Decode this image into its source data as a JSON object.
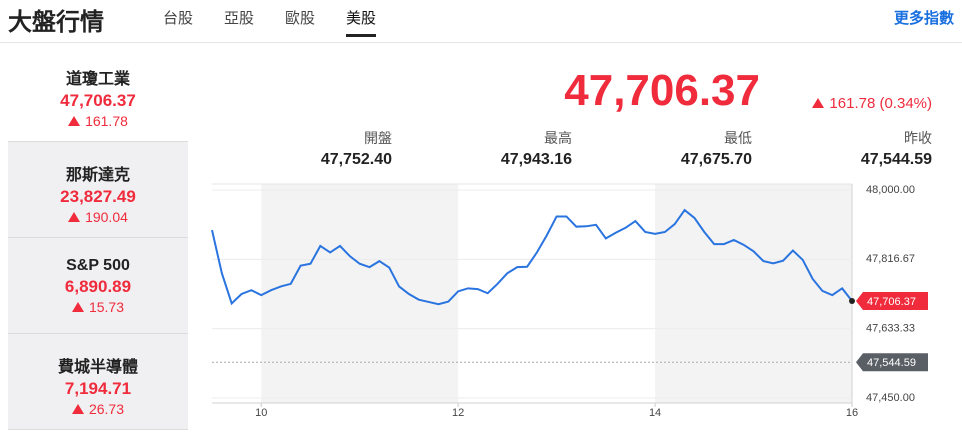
{
  "header": {
    "title": "大盤行情",
    "tabs": [
      "台股",
      "亞股",
      "歐股",
      "美股"
    ],
    "active_tab": 3,
    "more": "更多指數"
  },
  "indices": [
    {
      "name": "道瓊工業",
      "value": "47,706.37",
      "change": "161.78"
    },
    {
      "name": "那斯達克",
      "value": "23,827.49",
      "change": "190.04"
    },
    {
      "name": "S&P 500",
      "value": "6,890.89",
      "change": "15.73"
    },
    {
      "name": "費城半導體",
      "value": "7,194.71",
      "change": "26.73"
    }
  ],
  "selected_index": 0,
  "quote": {
    "price": "47,706.37",
    "change": "161.78 (0.34%)",
    "stats": [
      {
        "label": "開盤",
        "value": "47,752.40"
      },
      {
        "label": "最高",
        "value": "47,943.16"
      },
      {
        "label": "最低",
        "value": "47,675.70"
      },
      {
        "label": "昨收",
        "value": "47,544.59"
      }
    ]
  },
  "chart_data": {
    "type": "line",
    "color": "#2a74e0",
    "x": [
      9.5,
      9.6,
      9.7,
      9.8,
      9.9,
      10.0,
      10.1,
      10.2,
      10.3,
      10.4,
      10.5,
      10.6,
      10.7,
      10.8,
      10.9,
      11.0,
      11.1,
      11.2,
      11.3,
      11.4,
      11.5,
      11.6,
      11.7,
      11.8,
      11.9,
      12.0,
      12.1,
      12.2,
      12.3,
      12.4,
      12.5,
      12.6,
      12.7,
      12.8,
      12.9,
      13.0,
      13.1,
      13.2,
      13.3,
      13.4,
      13.5,
      13.6,
      13.7,
      13.8,
      13.9,
      14.0,
      14.1,
      14.2,
      14.3,
      14.4,
      14.5,
      14.6,
      14.7,
      14.8,
      14.9,
      15.0,
      15.1,
      15.2,
      15.3,
      15.4,
      15.5,
      15.6,
      15.7,
      15.8,
      15.9,
      16.0
    ],
    "values": [
      47894,
      47780,
      47700,
      47725,
      47735,
      47722,
      47735,
      47745,
      47752,
      47800,
      47805,
      47852,
      47835,
      47852,
      47825,
      47805,
      47796,
      47812,
      47795,
      47745,
      47725,
      47710,
      47704,
      47698,
      47705,
      47732,
      47740,
      47738,
      47727,
      47752,
      47780,
      47796,
      47797,
      47835,
      47880,
      47930,
      47930,
      47903,
      47904,
      47908,
      47872,
      47887,
      47900,
      47918,
      47889,
      47884,
      47889,
      47910,
      47947,
      47926,
      47889,
      47857,
      47857,
      47868,
      47855,
      47838,
      47812,
      47806,
      47813,
      47840,
      47815,
      47765,
      47733,
      47722,
      47740,
      47706.37
    ],
    "xlim": [
      9.5,
      16
    ],
    "xticks": [
      10,
      12,
      14,
      16
    ],
    "ylim": [
      47450,
      48000
    ],
    "yticks": [
      {
        "value": 48000,
        "label": "48,000.00"
      },
      {
        "value": 47816.67,
        "label": "47,816.67"
      },
      {
        "value": 47633.33,
        "label": "47,633.33"
      },
      {
        "value": 47450,
        "label": "47,450.00"
      }
    ],
    "last": {
      "value": 47706.37,
      "label": "47,706.37"
    },
    "reference": {
      "value": 47544.59,
      "label": "47,544.59"
    }
  }
}
